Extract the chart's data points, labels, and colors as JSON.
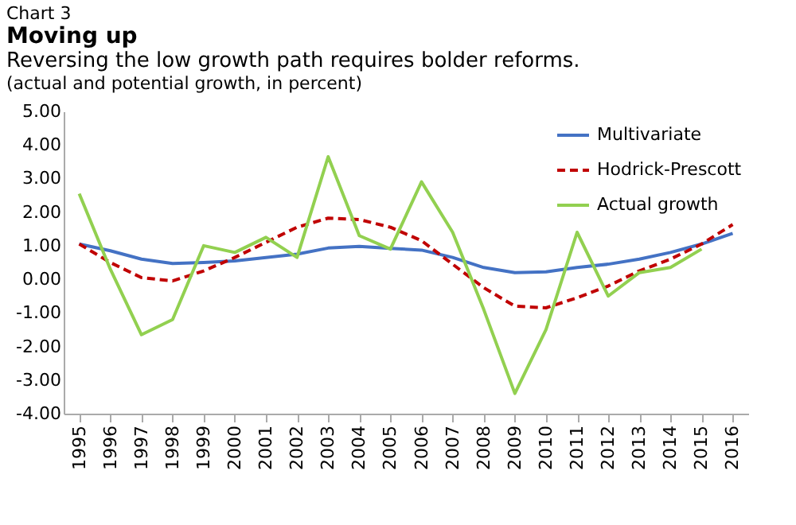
{
  "chart_data": {
    "type": "line",
    "title": "Moving up",
    "subtitle": "Reversing the low growth path requires bolder reforms.",
    "annotations": [
      "Chart 3",
      "(actual and potential growth, in percent)"
    ],
    "categories": [
      "1995",
      "1996",
      "1997",
      "1998",
      "1999",
      "2000",
      "2001",
      "2002",
      "2003",
      "2004",
      "2005",
      "2006",
      "2007",
      "2008",
      "2009",
      "2010",
      "2011",
      "2012",
      "2013",
      "2014",
      "2015",
      "2016"
    ],
    "series": [
      {
        "name": "Multivariate",
        "color": "#4472c4",
        "line_style": "solid",
        "values": [
          1.05,
          0.85,
          0.6,
          0.47,
          0.5,
          0.55,
          0.65,
          0.75,
          0.93,
          0.98,
          0.92,
          0.87,
          0.65,
          0.35,
          0.2,
          0.22,
          0.35,
          0.45,
          0.6,
          0.8,
          1.05,
          1.37
        ]
      },
      {
        "name": "Hodrick-Prescott",
        "color": "#c00000",
        "line_style": "dashed",
        "values": [
          1.05,
          0.5,
          0.05,
          -0.05,
          0.25,
          0.65,
          1.1,
          1.55,
          1.82,
          1.78,
          1.55,
          1.15,
          0.45,
          -0.25,
          -0.8,
          -0.85,
          -0.55,
          -0.2,
          0.25,
          0.6,
          1.05,
          1.63
        ]
      },
      {
        "name": "Actual growth",
        "color": "#92d050",
        "line_style": "solid",
        "values": [
          2.55,
          0.3,
          -1.65,
          -1.2,
          1.0,
          0.8,
          1.25,
          0.65,
          3.65,
          1.3,
          0.9,
          2.9,
          1.4,
          -0.9,
          -3.4,
          -1.5,
          1.4,
          -0.5,
          0.2,
          0.35,
          0.9,
          null
        ]
      }
    ],
    "ylim": [
      -4,
      5
    ],
    "yticks": [
      {
        "value": -4,
        "label": "-4.00"
      },
      {
        "value": -3,
        "label": "-3.00"
      },
      {
        "value": -2,
        "label": "-2.00"
      },
      {
        "value": -1,
        "label": "-1.00"
      },
      {
        "value": 0,
        "label": "0.00"
      },
      {
        "value": 1,
        "label": "1.00"
      },
      {
        "value": 2,
        "label": "2.00"
      },
      {
        "value": 3,
        "label": "3.00"
      },
      {
        "value": 4,
        "label": "4.00"
      },
      {
        "value": 5,
        "label": "5.00"
      }
    ],
    "grid": false,
    "legend": "top right"
  }
}
